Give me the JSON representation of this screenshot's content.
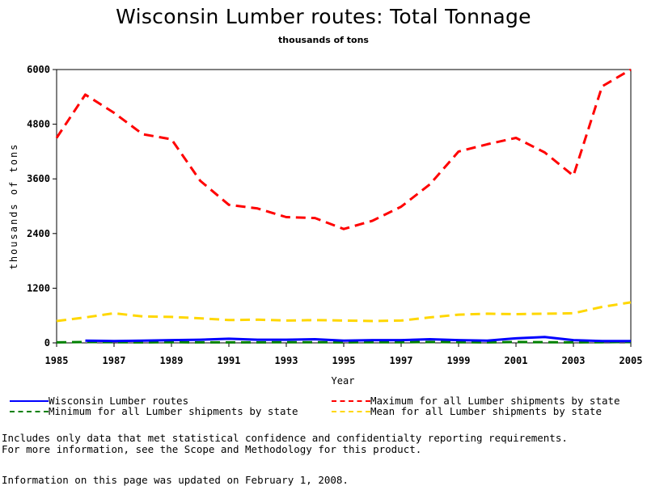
{
  "page": {
    "title": "Wisconsin Lumber routes: Total Tonnage",
    "subtitle": "thousands of tons",
    "notes": [
      "Includes only data that met statistical confidence and confidentialty reporting requirements.",
      "For more information, see the Scope and Methodology for this product."
    ],
    "updated": "Information on this page was updated on February 1, 2008."
  },
  "chart_data": {
    "type": "line",
    "title": "Wisconsin Lumber routes: Total Tonnage",
    "subtitle": "thousands of tons",
    "xlabel": "Year",
    "ylabel": "thousands of tons",
    "xlim": [
      1985,
      2005
    ],
    "ylim": [
      0,
      6000
    ],
    "x_ticks": [
      "1985",
      "1987",
      "1989",
      "1991",
      "1993",
      "1995",
      "1997",
      "1999",
      "2001",
      "2003",
      "2005"
    ],
    "y_ticks": [
      "0",
      "1200",
      "2400",
      "3600",
      "4800",
      "6000"
    ],
    "grid": false,
    "legend_position": "bottom",
    "series": [
      {
        "name": "Wisconsin Lumber routes",
        "color": "#0000ff",
        "dash": "solid",
        "x": [
          1986,
          1987,
          1988,
          1989,
          1990,
          1991,
          1992,
          1993,
          1994,
          1995,
          1996,
          1997,
          1998,
          1999,
          2000,
          2001,
          2002,
          2003,
          2004,
          2005
        ],
        "values": [
          50,
          40,
          50,
          60,
          70,
          90,
          70,
          70,
          80,
          50,
          60,
          60,
          80,
          60,
          50,
          100,
          130,
          60,
          40,
          40
        ]
      },
      {
        "name": "Maximum for all Lumber shipments by state",
        "color": "#ff0000",
        "dash": "dashed",
        "x": [
          1985,
          1986,
          1987,
          1988,
          1989,
          1990,
          1991,
          1992,
          1993,
          1994,
          1995,
          1996,
          1997,
          1998,
          1999,
          2000,
          2001,
          2002,
          2003,
          2004,
          2005
        ],
        "values": [
          4500,
          5450,
          5050,
          4580,
          4470,
          3560,
          3030,
          2950,
          2760,
          2740,
          2500,
          2680,
          2990,
          3480,
          4200,
          4360,
          4500,
          4180,
          3670,
          5630,
          6000
        ]
      },
      {
        "name": "Minimum for all Lumber shipments by state",
        "color": "#008000",
        "dash": "dashed",
        "x": [
          1985,
          1986,
          1987,
          1988,
          1989,
          1990,
          1991,
          1992,
          1993,
          1994,
          1995,
          1996,
          1997,
          1998,
          1999,
          2000,
          2001,
          2002,
          2003,
          2004,
          2005
        ],
        "values": [
          10,
          20,
          15,
          10,
          15,
          10,
          10,
          10,
          15,
          15,
          10,
          15,
          15,
          20,
          15,
          10,
          20,
          15,
          10,
          15,
          20
        ]
      },
      {
        "name": "Mean for all Lumber shipments by state",
        "color": "#ffd700",
        "dash": "dashed",
        "x": [
          1985,
          1986,
          1987,
          1988,
          1989,
          1990,
          1991,
          1992,
          1993,
          1994,
          1995,
          1996,
          1997,
          1998,
          1999,
          2000,
          2001,
          2002,
          2003,
          2004,
          2005
        ],
        "values": [
          480,
          560,
          650,
          580,
          570,
          540,
          500,
          510,
          490,
          500,
          490,
          480,
          490,
          560,
          620,
          640,
          630,
          640,
          650,
          790,
          890
        ]
      }
    ]
  }
}
